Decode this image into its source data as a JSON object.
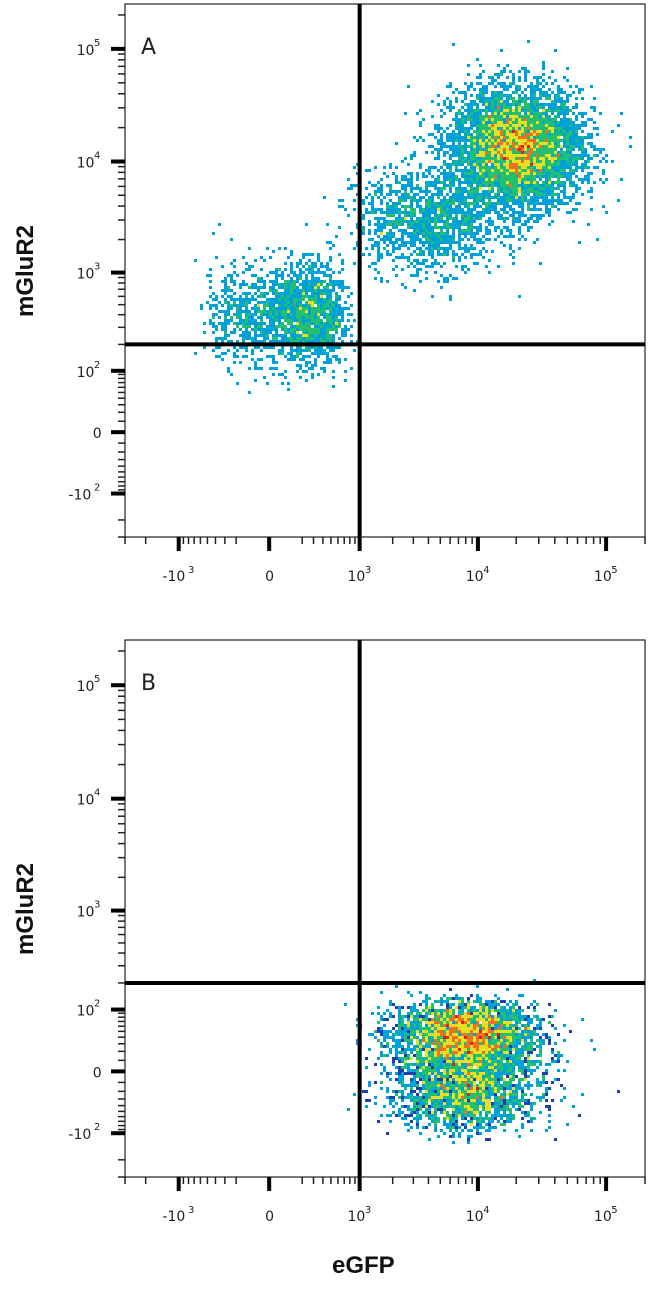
{
  "chart_data": [
    {
      "type": "scatter",
      "panel_label": "A",
      "xlabel": "eGFP",
      "ylabel": "mGluR2",
      "x_scale": "biexponential",
      "y_scale": "biexponential",
      "xlim": [
        -3000,
        200000
      ],
      "ylim": [
        -300,
        250000
      ],
      "x_ticks": [
        {
          "base": "-10",
          "exp": "3",
          "value": -1000
        },
        {
          "base": "0",
          "exp": "",
          "value": 0
        },
        {
          "base": "10",
          "exp": "3",
          "value": 1000
        },
        {
          "base": "10",
          "exp": "4",
          "value": 10000
        },
        {
          "base": "10",
          "exp": "5",
          "value": 100000
        }
      ],
      "y_ticks": [
        {
          "base": "10",
          "exp": "5",
          "value": 100000
        },
        {
          "base": "10",
          "exp": "4",
          "value": 10000
        },
        {
          "base": "10",
          "exp": "3",
          "value": 1000
        },
        {
          "base": "10",
          "exp": "2",
          "value": 100
        },
        {
          "base": "0",
          "exp": "",
          "value": 0
        },
        {
          "base": "-10",
          "exp": "2",
          "value": -100
        }
      ],
      "quadrant_gates": {
        "x": 1000,
        "y": 200
      },
      "color_scale": [
        "#1f3fb0",
        "#00a0d8",
        "#20c070",
        "#e8e020",
        "#f07020",
        "#e02020"
      ],
      "populations": [
        {
          "desc": "double positive cluster",
          "x_center": 20000,
          "y_center": 13000,
          "x_spread_decades": 0.45,
          "y_spread_decades": 0.35,
          "fraction": 0.62
        },
        {
          "desc": "eGFP negative mGluR2 low",
          "x_center": 150,
          "y_center": 400,
          "x_spread": 250,
          "y_spread_decades": 0.3,
          "fraction": 0.22
        },
        {
          "desc": "transition stream",
          "x_center": 4000,
          "y_center": 3000,
          "x_spread_decades": 0.5,
          "y_spread_decades": 0.3,
          "fraction": 0.16
        }
      ]
    },
    {
      "type": "scatter",
      "panel_label": "B",
      "xlabel": "eGFP",
      "ylabel": "mGluR2",
      "x_scale": "biexponential",
      "y_scale": "biexponential",
      "xlim": [
        -3000,
        200000
      ],
      "ylim": [
        -300,
        250000
      ],
      "x_ticks": [
        {
          "base": "-10",
          "exp": "3",
          "value": -1000
        },
        {
          "base": "0",
          "exp": "",
          "value": 0
        },
        {
          "base": "10",
          "exp": "3",
          "value": 1000
        },
        {
          "base": "10",
          "exp": "4",
          "value": 10000
        },
        {
          "base": "10",
          "exp": "5",
          "value": 100000
        }
      ],
      "y_ticks": [
        {
          "base": "10",
          "exp": "5",
          "value": 100000
        },
        {
          "base": "10",
          "exp": "4",
          "value": 10000
        },
        {
          "base": "10",
          "exp": "3",
          "value": 1000
        },
        {
          "base": "10",
          "exp": "2",
          "value": 100
        },
        {
          "base": "0",
          "exp": "",
          "value": 0
        },
        {
          "base": "-10",
          "exp": "2",
          "value": -100
        }
      ],
      "quadrant_gates": {
        "x": 1000,
        "y": 200
      },
      "color_scale": [
        "#1f3fb0",
        "#00a0d8",
        "#20c070",
        "#e8e020",
        "#f07020",
        "#e02020"
      ],
      "populations": [
        {
          "desc": "eGFP positive mGluR2 negative",
          "x_center": 8000,
          "y_center": 20,
          "x_spread_decades": 0.5,
          "y_spread": 45,
          "fraction": 1.0
        }
      ]
    }
  ]
}
